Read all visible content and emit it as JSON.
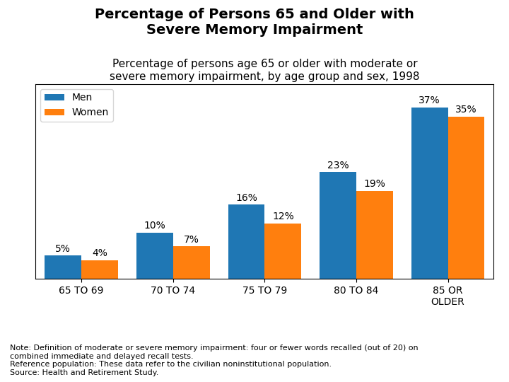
{
  "chart_data": {
    "type": "bar",
    "title": "Percentage of Persons 65 and Older with\nSevere Memory Impairment",
    "subtitle": "Percentage of persons age 65 or older with moderate or\nsevere memory impairment, by age group and sex, 1998",
    "annotations": [
      "Note: Definition of moderate or severe memory impairment: four or fewer words recalled (out of 20) on\ncombined immediate and delayed recall tests.\nReference population: These data refer to the civilian noninstitutional population.\nSource: Health and Retirement Study."
    ],
    "categories": [
      "65 TO 69",
      "70 TO 74",
      "75 TO 79",
      "80 TO 84",
      "85 OR\nOLDER"
    ],
    "series": [
      {
        "name": "Men",
        "values": [
          5,
          10,
          16,
          23,
          37
        ],
        "value_labels": [
          "5%",
          "10%",
          "16%",
          "23%",
          "37%"
        ]
      },
      {
        "name": "Women",
        "values": [
          4,
          7,
          12,
          19,
          35
        ],
        "value_labels": [
          "4%",
          "7%",
          "12%",
          "19%",
          "35%"
        ]
      }
    ],
    "ylim": [
      0,
      42
    ],
    "yticks": [],
    "tick_labels": "x",
    "data_labels": true,
    "legend": "upper left",
    "grid": false
  }
}
